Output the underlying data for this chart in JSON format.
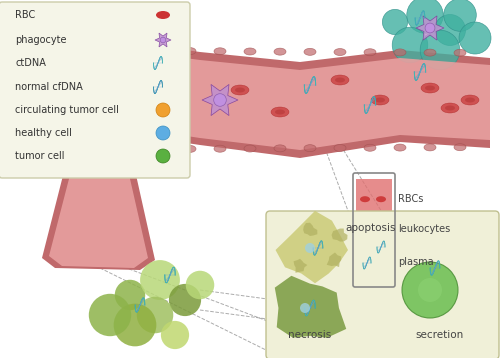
{
  "bg_color": "#ffffff",
  "legend_bg": "#f5f5e8",
  "legend_border": "#ccccaa",
  "legend_items": [
    "RBC",
    "phagocyte",
    "ctDNA",
    "normal cfDNA",
    "circulating tumor cell",
    "healthy cell",
    "tumor cell"
  ],
  "rbc_color": "#cc4444",
  "phagocyte_color": "#c090d0",
  "ctdna_color1": "#2980b9",
  "ctdna_color2": "#40c0b0",
  "tumor_cell_color": "#5ab040",
  "healthy_cell_color": "#5dade2",
  "circ_tumor_color": "#f0a030",
  "blood_vessel_color": "#c0696b",
  "blood_vessel_inner": "#e8a0a0",
  "tube_plasma_color": "#f5c6a0",
  "tube_leuko_color": "#f0e68c",
  "tube_rbc_color": "#e07070",
  "apoptosis_color": "#c8c870",
  "necrosis_color": "#7a9a40",
  "secretion_color": "#6abe50",
  "tumor_mass_colors": [
    "#8db34a",
    "#b8d878",
    "#7a9a3a",
    "#a0c060",
    "#c0d870",
    "#90b040"
  ],
  "teal_cell_color": "#40b0a0",
  "dashed_color": "#888888",
  "text_color": "#444444"
}
